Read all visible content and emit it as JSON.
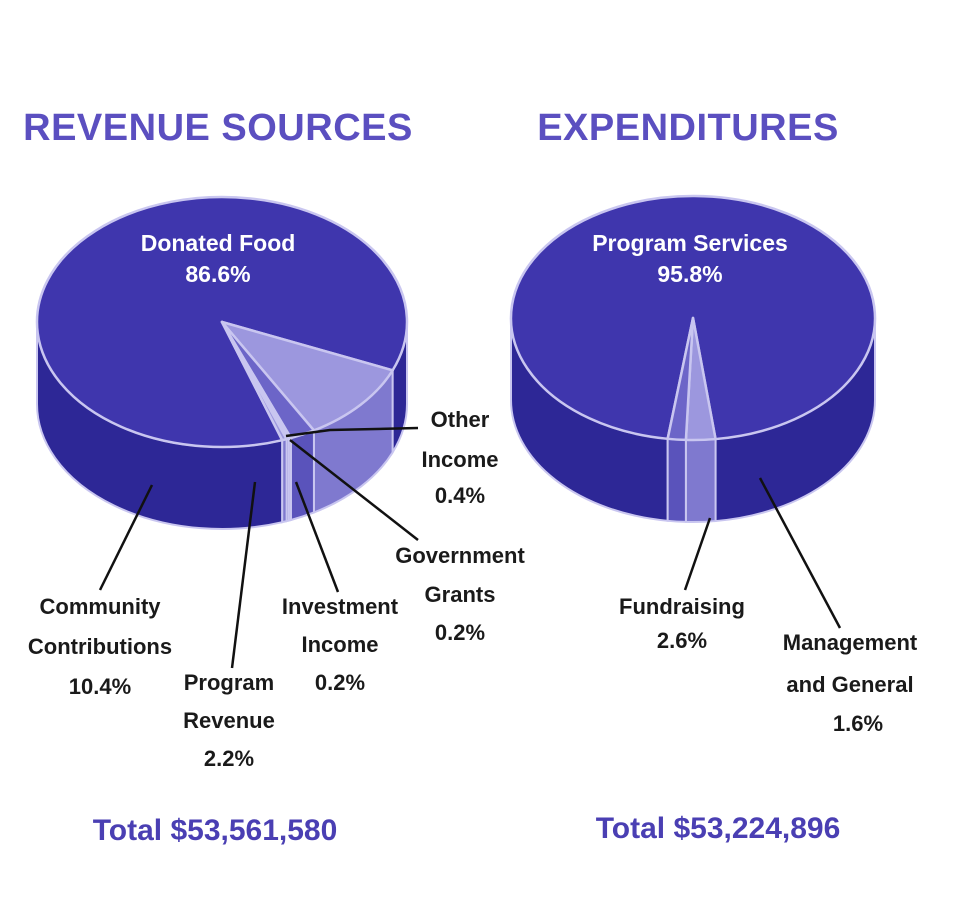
{
  "colors": {
    "title": "#5b4fc0",
    "total": "#4a3fb3",
    "main_top": "#3f36ad",
    "main_side": "#2d2796",
    "light_top": "#9c97de",
    "light_side": "#7f79cf",
    "mid_top": "#6c65c8",
    "mid_side": "#5a53bb",
    "edge": "#c9c6f0"
  },
  "chart_data": [
    {
      "type": "pie",
      "title": "REVENUE SOURCES",
      "total": "Total $53,561,580",
      "slices": [
        {
          "name": "Donated Food",
          "label_lines": [
            "Donated Food"
          ],
          "percent_label": "86.6%",
          "value": 86.6
        },
        {
          "name": "Community Contributions",
          "label_lines": [
            "Community",
            "Contributions"
          ],
          "percent_label": "10.4%",
          "value": 10.4
        },
        {
          "name": "Program Revenue",
          "label_lines": [
            "Program",
            "Revenue"
          ],
          "percent_label": "2.2%",
          "value": 2.2
        },
        {
          "name": "Investment Income",
          "label_lines": [
            "Investment",
            "Income"
          ],
          "percent_label": "0.2%",
          "value": 0.2
        },
        {
          "name": "Government Grants",
          "label_lines": [
            "Government",
            "Grants"
          ],
          "percent_label": "0.2%",
          "value": 0.2
        },
        {
          "name": "Other Income",
          "label_lines": [
            "Other",
            "Income"
          ],
          "percent_label": "0.4%",
          "value": 0.4
        }
      ]
    },
    {
      "type": "pie",
      "title": "EXPENDITURES",
      "total": "Total $53,224,896",
      "slices": [
        {
          "name": "Program Services",
          "label_lines": [
            "Program Services"
          ],
          "percent_label": "95.8%",
          "value": 95.8
        },
        {
          "name": "Fundraising",
          "label_lines": [
            "Fundraising"
          ],
          "percent_label": "2.6%",
          "value": 2.6
        },
        {
          "name": "Management and General",
          "label_lines": [
            "Management",
            "and General"
          ],
          "percent_label": "1.6%",
          "value": 1.6
        }
      ]
    }
  ]
}
